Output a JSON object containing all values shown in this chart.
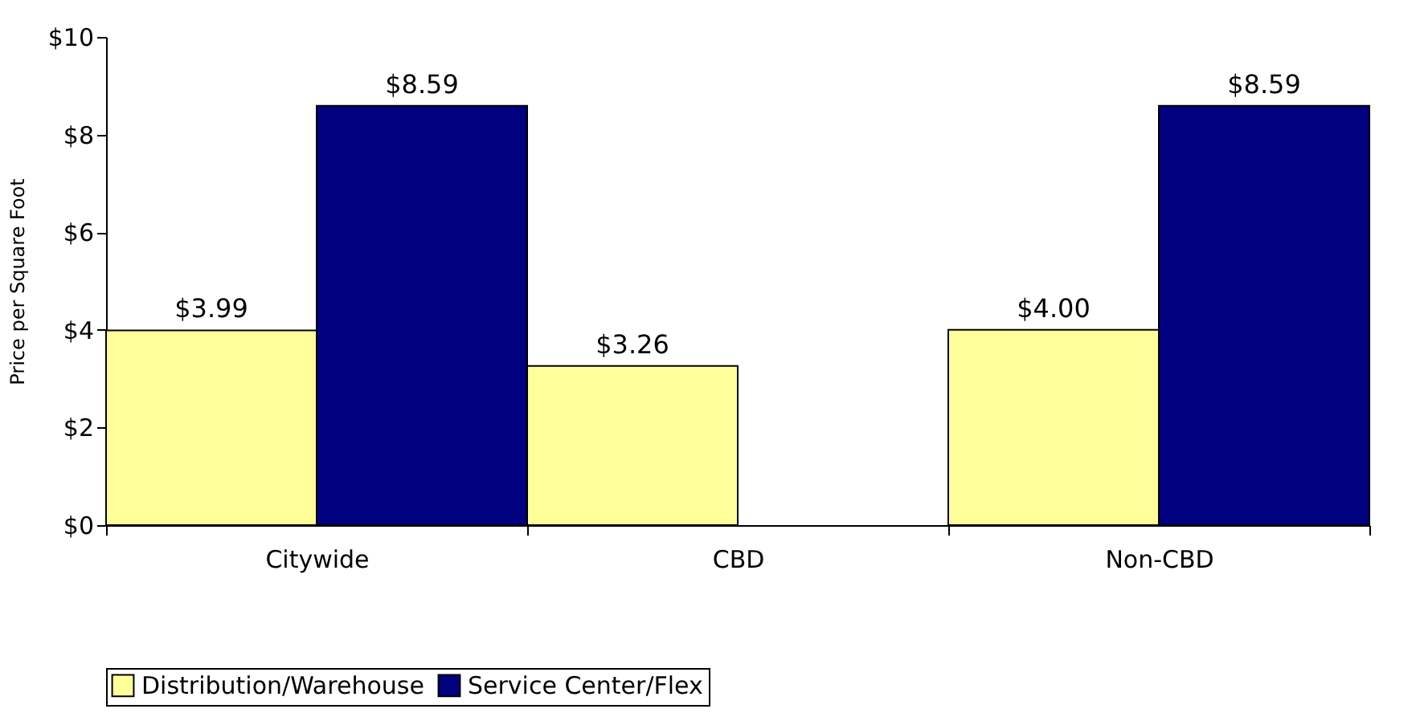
{
  "chart_data": {
    "type": "bar",
    "ylabel": "Price per Square Foot",
    "categories": [
      "Citywide",
      "CBD",
      "Non-CBD"
    ],
    "series": [
      {
        "name": "Distribution/Warehouse",
        "color": "#ffff99",
        "values": [
          3.99,
          3.26,
          4.0
        ],
        "value_labels": [
          "$3.99",
          "$3.26",
          "$4.00"
        ]
      },
      {
        "name": "Service Center/Flex",
        "color": "#000080",
        "values": [
          8.59,
          null,
          8.59
        ],
        "value_labels": [
          "$8.59",
          null,
          "$8.59"
        ]
      }
    ],
    "ylim": [
      0,
      10
    ],
    "yticks": [
      {
        "value": 0,
        "label": "$0"
      },
      {
        "value": 2,
        "label": "$2"
      },
      {
        "value": 4,
        "label": "$4"
      },
      {
        "value": 6,
        "label": "$6"
      },
      {
        "value": 8,
        "label": "$8"
      },
      {
        "value": 10,
        "label": "$10"
      }
    ],
    "grid": false,
    "legend": "bottom"
  }
}
